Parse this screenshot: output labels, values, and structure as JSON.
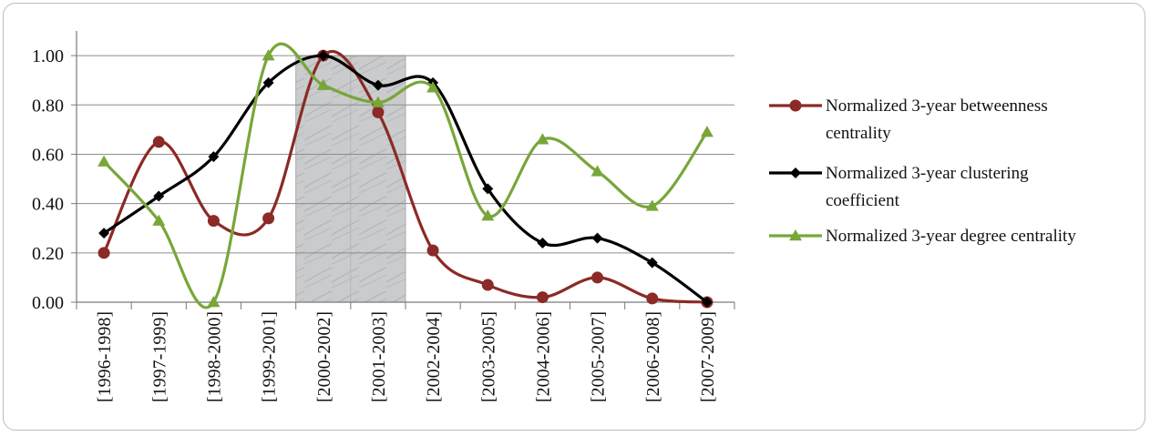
{
  "chart_data": {
    "type": "line",
    "title": "",
    "xlabel": "",
    "ylabel": "",
    "categories": [
      "[1996-1998]",
      "[1997-1999]",
      "[1998-2000]",
      "[1999-2001]",
      "[2000-2002]",
      "[2001-2003]",
      "[2002-2004]",
      "[2003-2005]",
      "[2004-2006]",
      "[2005-2007]",
      "[2006-2008]",
      "[2007-2009]"
    ],
    "ylim": [
      0,
      1.1
    ],
    "yticks": [
      "0.00",
      "0.20",
      "0.40",
      "0.60",
      "0.80",
      "1.00"
    ],
    "ytick_values": [
      0,
      0.2,
      0.4,
      0.6,
      0.8,
      1.0
    ],
    "grid": "horizontal",
    "legend_position": "right",
    "highlight_band": {
      "from_category": "[2000-2002]",
      "to_category": "[2001-2003]"
    },
    "series": [
      {
        "name": "Normalized 3-year betweenness centrality",
        "legend_lines": [
          "Normalized 3-year betweenness",
          "centrality"
        ],
        "color": "#8b2a26",
        "marker": "circle",
        "values": [
          0.2,
          0.65,
          0.33,
          0.34,
          1.0,
          0.77,
          0.21,
          0.07,
          0.02,
          0.1,
          0.015,
          0.0
        ]
      },
      {
        "name": "Normalized 3-year clustering coefficient",
        "legend_lines": [
          "Normalized 3-year clustering",
          "coefficient"
        ],
        "color": "#000000",
        "marker": "diamond",
        "values": [
          0.28,
          0.43,
          0.59,
          0.89,
          1.0,
          0.88,
          0.89,
          0.46,
          0.24,
          0.26,
          0.16,
          0.0
        ]
      },
      {
        "name": "Normalized 3-year degree centrality",
        "legend_lines": [
          "Normalized 3-year degree centrality"
        ],
        "color": "#78a63a",
        "marker": "triangle",
        "values": [
          0.57,
          0.33,
          0.0,
          1.0,
          0.88,
          0.81,
          0.87,
          0.35,
          0.66,
          0.53,
          0.39,
          0.69
        ]
      }
    ]
  }
}
